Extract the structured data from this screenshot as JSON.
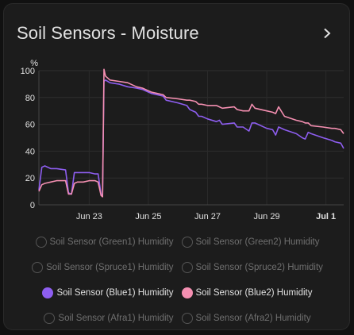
{
  "card": {
    "title": "Soil Sensors - Moisture"
  },
  "chart_data": {
    "type": "line",
    "ylabel": "%",
    "ylim": [
      0,
      100
    ],
    "yticks": [
      0,
      20,
      40,
      60,
      80,
      100
    ],
    "x_tick_labels": [
      "Jun 23",
      "Jun 25",
      "Jun 27",
      "Jun 29",
      "Jul 1"
    ],
    "x_tick_positions": [
      23,
      25,
      27,
      29,
      31
    ],
    "xlim": [
      21.3,
      31.6
    ],
    "grid": true,
    "series": [
      {
        "name": "Soil Sensor (Blue1) Humidity",
        "color": "#8e5ef0",
        "x": [
          21.3,
          21.4,
          21.5,
          21.7,
          21.9,
          22.2,
          22.3,
          22.4,
          22.5,
          22.6,
          22.8,
          23.0,
          23.2,
          23.3,
          23.4,
          23.45,
          23.5,
          23.55,
          23.7,
          24.0,
          24.3,
          24.6,
          24.8,
          25.0,
          25.1,
          25.3,
          25.5,
          25.6,
          26.0,
          26.3,
          26.4,
          26.6,
          26.7,
          26.8,
          27.0,
          27.3,
          27.4,
          27.5,
          27.9,
          28.0,
          28.2,
          28.4,
          28.5,
          28.6,
          29.0,
          29.2,
          29.3,
          29.4,
          29.6,
          30.0,
          30.2,
          30.3,
          30.4,
          30.5,
          30.9,
          31.2,
          31.3,
          31.5,
          31.6
        ],
        "y": [
          11,
          28,
          29,
          27,
          27,
          26,
          9,
          8,
          24,
          24,
          24,
          24,
          23,
          23,
          8,
          7,
          92,
          93,
          91,
          90,
          88,
          87,
          86,
          84,
          83,
          82,
          81,
          78,
          76,
          74,
          71,
          69,
          66,
          66,
          64,
          62,
          63,
          60,
          61,
          58,
          58,
          55,
          61,
          61,
          57,
          56,
          52,
          58,
          56,
          53,
          50,
          49,
          54,
          53,
          50,
          48,
          47,
          46,
          42
        ]
      },
      {
        "name": "Soil Sensor (Blue2) Humidity",
        "color": "#f48fb1",
        "x": [
          21.3,
          21.4,
          21.5,
          21.7,
          21.9,
          22.2,
          22.3,
          22.4,
          22.5,
          22.6,
          22.8,
          23.0,
          23.2,
          23.3,
          23.4,
          23.45,
          23.5,
          23.55,
          23.7,
          24.0,
          24.3,
          24.6,
          24.8,
          25.0,
          25.1,
          25.3,
          25.5,
          25.6,
          26.0,
          26.3,
          26.4,
          26.6,
          26.7,
          26.8,
          27.0,
          27.3,
          27.4,
          27.5,
          27.9,
          28.0,
          28.2,
          28.4,
          28.5,
          28.6,
          29.0,
          29.2,
          29.3,
          29.4,
          29.6,
          30.0,
          30.2,
          30.3,
          30.4,
          30.5,
          30.9,
          31.2,
          31.3,
          31.5,
          31.6
        ],
        "y": [
          10,
          15,
          16,
          17,
          18,
          18,
          8,
          8,
          16,
          17,
          17,
          18,
          18,
          17,
          7,
          6,
          101,
          96,
          93,
          92,
          91,
          88,
          87,
          85,
          84,
          83,
          82,
          80,
          79,
          78,
          78,
          77,
          75,
          75,
          74,
          74,
          73,
          72,
          73,
          71,
          70,
          70,
          75,
          72,
          70,
          69,
          68,
          73,
          66,
          63,
          62,
          61,
          61,
          59,
          58,
          57,
          57,
          56,
          53
        ]
      }
    ]
  },
  "legend": {
    "rows": [
      [
        {
          "label": "Soil Sensor (Green1) Humidity",
          "active": false,
          "color": "#555555"
        },
        {
          "label": "Soil Sensor (Green2) Humidity",
          "active": false,
          "color": "#555555"
        }
      ],
      [
        {
          "label": "Soil Sensor (Spruce1) Humidity",
          "active": false,
          "color": "#555555"
        },
        {
          "label": "Soil Sensor (Spruce2) Humidity",
          "active": false,
          "color": "#555555"
        }
      ],
      [
        {
          "label": "Soil Sensor (Blue1) Humidity",
          "active": true,
          "color": "#8e5ef0"
        },
        {
          "label": "Soil Sensor (Blue2) Humidity",
          "active": true,
          "color": "#f48fb1"
        }
      ],
      [
        {
          "label": "Soil Sensor (Afra1) Humidity",
          "active": false,
          "color": "#555555"
        },
        {
          "label": "Soil Sensor (Afra2) Humidity",
          "active": false,
          "color": "#555555"
        }
      ]
    ]
  }
}
